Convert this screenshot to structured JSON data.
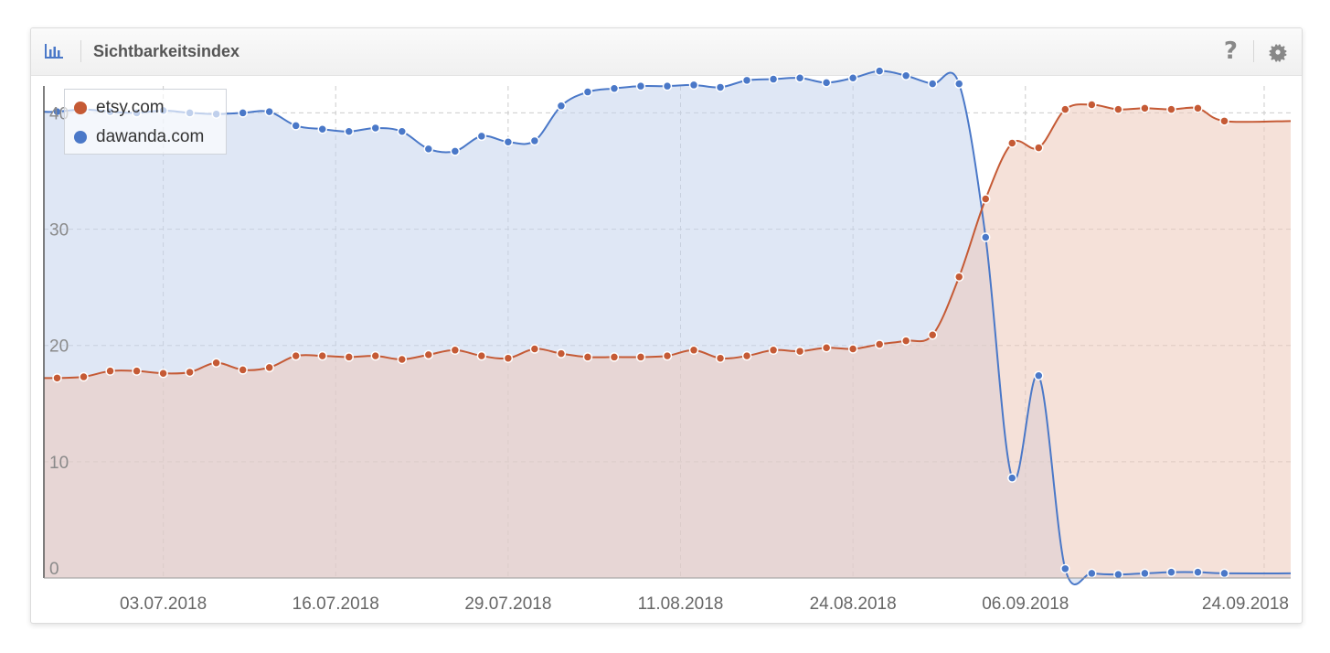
{
  "widget": {
    "title": "Sichtbarkeitsindex",
    "help_label": "?",
    "icon_left": "bar-chart-icon",
    "icon_help": "question-mark-icon",
    "icon_settings": "gear-icon"
  },
  "colors": {
    "etsy": "#c55a35",
    "dawanda": "#4a78c8",
    "etsy_fill": "#edc8b9",
    "dawanda_fill": "#c5d3ec"
  },
  "chart_data": {
    "type": "area",
    "title": "Sichtbarkeitsindex",
    "xlabel": "",
    "ylabel": "",
    "ylim": [
      0,
      42
    ],
    "yticks": [
      0,
      10,
      20,
      30,
      40
    ],
    "ytick_labels": [
      "0",
      "10",
      "20",
      "30",
      "40"
    ],
    "xlim": [
      "2018-06-24",
      "2018-09-26"
    ],
    "xtick_labels": [
      "03.07.2018",
      "16.07.2018",
      "29.07.2018",
      "11.08.2018",
      "24.08.2018",
      "06.09.2018",
      "24.09.2018"
    ],
    "xtick_dates": [
      "2018-07-03",
      "2018-07-16",
      "2018-07-29",
      "2018-08-11",
      "2018-08-24",
      "2018-09-06",
      "2018-09-24"
    ],
    "grid": true,
    "legend_position": "top-left",
    "series": [
      {
        "name": "etsy.com",
        "color": "#c55a35",
        "points": [
          [
            "2018-06-25",
            17.2
          ],
          [
            "2018-06-27",
            17.3
          ],
          [
            "2018-06-29",
            17.8
          ],
          [
            "2018-07-01",
            17.8
          ],
          [
            "2018-07-03",
            17.6
          ],
          [
            "2018-07-05",
            17.7
          ],
          [
            "2018-07-07",
            18.5
          ],
          [
            "2018-07-09",
            17.9
          ],
          [
            "2018-07-11",
            18.1
          ],
          [
            "2018-07-13",
            19.1
          ],
          [
            "2018-07-15",
            19.1
          ],
          [
            "2018-07-17",
            19.0
          ],
          [
            "2018-07-19",
            19.1
          ],
          [
            "2018-07-21",
            18.8
          ],
          [
            "2018-07-23",
            19.2
          ],
          [
            "2018-07-25",
            19.6
          ],
          [
            "2018-07-27",
            19.1
          ],
          [
            "2018-07-29",
            18.9
          ],
          [
            "2018-07-31",
            19.7
          ],
          [
            "2018-08-02",
            19.3
          ],
          [
            "2018-08-04",
            19.0
          ],
          [
            "2018-08-06",
            19.0
          ],
          [
            "2018-08-08",
            19.0
          ],
          [
            "2018-08-10",
            19.1
          ],
          [
            "2018-08-12",
            19.6
          ],
          [
            "2018-08-14",
            18.9
          ],
          [
            "2018-08-16",
            19.1
          ],
          [
            "2018-08-18",
            19.6
          ],
          [
            "2018-08-20",
            19.5
          ],
          [
            "2018-08-22",
            19.8
          ],
          [
            "2018-08-24",
            19.7
          ],
          [
            "2018-08-26",
            20.1
          ],
          [
            "2018-08-28",
            20.4
          ],
          [
            "2018-08-30",
            20.9
          ],
          [
            "2018-09-01",
            25.9
          ],
          [
            "2018-09-03",
            32.6
          ],
          [
            "2018-09-05",
            37.4
          ],
          [
            "2018-09-07",
            37.0
          ],
          [
            "2018-09-09",
            40.3
          ],
          [
            "2018-09-11",
            40.7
          ],
          [
            "2018-09-13",
            40.3
          ],
          [
            "2018-09-15",
            40.4
          ],
          [
            "2018-09-17",
            40.3
          ],
          [
            "2018-09-19",
            40.4
          ],
          [
            "2018-09-21",
            39.3
          ]
        ]
      },
      {
        "name": "dawanda.com",
        "color": "#4a78c8",
        "points": [
          [
            "2018-06-25",
            40.1
          ],
          [
            "2018-06-27",
            40.3
          ],
          [
            "2018-06-29",
            40.1
          ],
          [
            "2018-07-01",
            40.0
          ],
          [
            "2018-07-03",
            40.2
          ],
          [
            "2018-07-05",
            40.0
          ],
          [
            "2018-07-07",
            39.9
          ],
          [
            "2018-07-09",
            40.0
          ],
          [
            "2018-07-11",
            40.1
          ],
          [
            "2018-07-13",
            38.9
          ],
          [
            "2018-07-15",
            38.6
          ],
          [
            "2018-07-17",
            38.4
          ],
          [
            "2018-07-19",
            38.7
          ],
          [
            "2018-07-21",
            38.4
          ],
          [
            "2018-07-23",
            36.9
          ],
          [
            "2018-07-25",
            36.7
          ],
          [
            "2018-07-27",
            38.0
          ],
          [
            "2018-07-29",
            37.5
          ],
          [
            "2018-07-31",
            37.6
          ],
          [
            "2018-08-02",
            40.6
          ],
          [
            "2018-08-04",
            41.8
          ],
          [
            "2018-08-06",
            42.1
          ],
          [
            "2018-08-08",
            42.3
          ],
          [
            "2018-08-10",
            42.3
          ],
          [
            "2018-08-12",
            42.4
          ],
          [
            "2018-08-14",
            42.2
          ],
          [
            "2018-08-16",
            42.8
          ],
          [
            "2018-08-18",
            42.9
          ],
          [
            "2018-08-20",
            43.0
          ],
          [
            "2018-08-22",
            42.6
          ],
          [
            "2018-08-24",
            43.0
          ],
          [
            "2018-08-26",
            43.6
          ],
          [
            "2018-08-28",
            43.2
          ],
          [
            "2018-08-30",
            42.5
          ],
          [
            "2018-09-01",
            42.5
          ],
          [
            "2018-09-03",
            29.3
          ],
          [
            "2018-09-05",
            8.6
          ],
          [
            "2018-09-07",
            17.4
          ],
          [
            "2018-09-09",
            0.8
          ],
          [
            "2018-09-11",
            0.4
          ],
          [
            "2018-09-13",
            0.3
          ],
          [
            "2018-09-15",
            0.4
          ],
          [
            "2018-09-17",
            0.5
          ],
          [
            "2018-09-19",
            0.5
          ],
          [
            "2018-09-21",
            0.4
          ]
        ]
      }
    ]
  }
}
